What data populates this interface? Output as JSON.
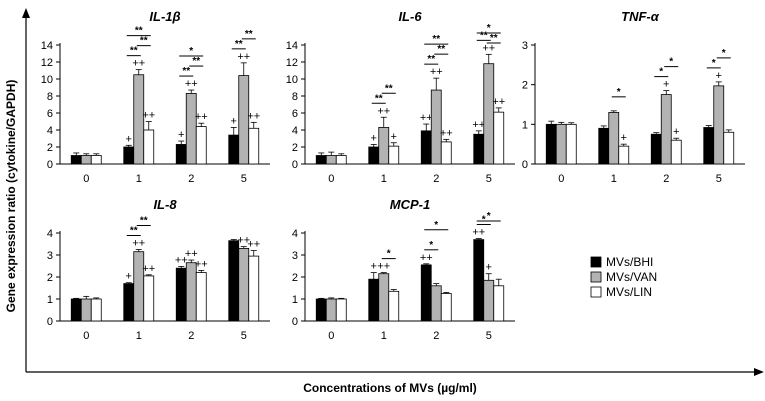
{
  "chart_data": [
    {
      "type": "bar",
      "title": "IL-1β",
      "categories": [
        "0",
        "1",
        "2",
        "5"
      ],
      "ylim": [
        0,
        14
      ],
      "yticks": [
        0,
        2,
        4,
        6,
        8,
        10,
        12,
        14
      ],
      "series": [
        {
          "name": "MVs/BHI",
          "values": [
            1.0,
            2.0,
            2.3,
            3.4
          ],
          "errors": [
            0.3,
            0.2,
            0.4,
            0.9
          ],
          "marks": [
            "",
            "+",
            "+",
            "+"
          ]
        },
        {
          "name": "MVs/VAN",
          "values": [
            1.0,
            10.5,
            8.3,
            10.4
          ],
          "errors": [
            0.2,
            0.6,
            0.4,
            1.5
          ],
          "marks": [
            "",
            "++",
            "++",
            "++"
          ]
        },
        {
          "name": "MVs/LIN",
          "values": [
            1.0,
            4.0,
            4.4,
            4.2
          ],
          "errors": [
            0.2,
            1.0,
            0.4,
            0.7
          ],
          "marks": [
            "",
            "++",
            "++",
            "++"
          ]
        }
      ],
      "brackets": [
        {
          "cat": 1,
          "from": 0,
          "to": 2,
          "label": "**"
        },
        {
          "cat": 1,
          "from": 0,
          "to": 1,
          "label": "**"
        },
        {
          "cat": 1,
          "from": 1,
          "to": 2,
          "label": "**"
        },
        {
          "cat": 2,
          "from": 0,
          "to": 2,
          "label": "*"
        },
        {
          "cat": 2,
          "from": 0,
          "to": 1,
          "label": "**"
        },
        {
          "cat": 2,
          "from": 1,
          "to": 2,
          "label": "**"
        },
        {
          "cat": 3,
          "from": 0,
          "to": 1,
          "label": "**"
        },
        {
          "cat": 3,
          "from": 1,
          "to": 2,
          "label": "**"
        }
      ]
    },
    {
      "type": "bar",
      "title": "IL-6",
      "categories": [
        "0",
        "1",
        "2",
        "5"
      ],
      "ylim": [
        0,
        14
      ],
      "yticks": [
        0,
        2,
        4,
        6,
        8,
        10,
        12,
        14
      ],
      "series": [
        {
          "name": "MVs/BHI",
          "values": [
            1.0,
            2.0,
            3.9,
            3.5
          ],
          "errors": [
            0.3,
            0.3,
            0.8,
            0.4
          ],
          "marks": [
            "",
            "+",
            "++",
            "++"
          ]
        },
        {
          "name": "MVs/VAN",
          "values": [
            1.0,
            4.3,
            8.7,
            11.8
          ],
          "errors": [
            0.4,
            1.2,
            1.4,
            1.1
          ],
          "marks": [
            "",
            "++",
            "++",
            "++"
          ]
        },
        {
          "name": "MVs/LIN",
          "values": [
            1.0,
            2.1,
            2.6,
            6.1
          ],
          "errors": [
            0.2,
            0.4,
            0.3,
            0.5
          ],
          "marks": [
            "",
            "+",
            "++",
            "++"
          ]
        }
      ],
      "brackets": [
        {
          "cat": 1,
          "from": 0,
          "to": 1,
          "label": "**"
        },
        {
          "cat": 1,
          "from": 1,
          "to": 2,
          "label": "**"
        },
        {
          "cat": 2,
          "from": 0,
          "to": 2,
          "label": "**"
        },
        {
          "cat": 2,
          "from": 0,
          "to": 1,
          "label": "**"
        },
        {
          "cat": 2,
          "from": 1,
          "to": 2,
          "label": "**"
        },
        {
          "cat": 3,
          "from": 0,
          "to": 2,
          "label": "*"
        },
        {
          "cat": 3,
          "from": 0,
          "to": 1,
          "label": "**"
        },
        {
          "cat": 3,
          "from": 1,
          "to": 2,
          "label": "**"
        }
      ]
    },
    {
      "type": "bar",
      "title": "TNF-α",
      "categories": [
        "0",
        "1",
        "2",
        "5"
      ],
      "ylim": [
        0,
        3
      ],
      "yticks": [
        0,
        1,
        2,
        3
      ],
      "series": [
        {
          "name": "MVs/BHI",
          "values": [
            1.0,
            0.9,
            0.75,
            0.92
          ],
          "errors": [
            0.08,
            0.06,
            0.04,
            0.05
          ],
          "marks": [
            "",
            "",
            "",
            ""
          ]
        },
        {
          "name": "MVs/VAN",
          "values": [
            1.0,
            1.3,
            1.75,
            1.97
          ],
          "errors": [
            0.05,
            0.04,
            0.1,
            0.1
          ],
          "marks": [
            "",
            "",
            "+",
            "+"
          ]
        },
        {
          "name": "MVs/LIN",
          "values": [
            1.0,
            0.45,
            0.6,
            0.8
          ],
          "errors": [
            0.04,
            0.05,
            0.05,
            0.06
          ],
          "marks": [
            "",
            "+",
            "+",
            ""
          ]
        }
      ],
      "brackets": [
        {
          "cat": 1,
          "from": 1,
          "to": 2,
          "label": "*"
        },
        {
          "cat": 2,
          "from": 0,
          "to": 1,
          "label": "*"
        },
        {
          "cat": 2,
          "from": 1,
          "to": 2,
          "label": "*"
        },
        {
          "cat": 3,
          "from": 0,
          "to": 1,
          "label": "*"
        },
        {
          "cat": 3,
          "from": 1,
          "to": 2,
          "label": "*"
        }
      ]
    },
    {
      "type": "bar",
      "title": "IL-8",
      "categories": [
        "0",
        "1",
        "2",
        "5"
      ],
      "ylim": [
        0,
        4
      ],
      "yticks": [
        0,
        1,
        2,
        3,
        4
      ],
      "series": [
        {
          "name": "MVs/BHI",
          "values": [
            1.0,
            1.7,
            2.4,
            3.65
          ],
          "errors": [
            0.03,
            0.04,
            0.08,
            0.05
          ],
          "marks": [
            "",
            "+",
            "++",
            ""
          ]
        },
        {
          "name": "MVs/VAN",
          "values": [
            1.0,
            3.15,
            2.65,
            3.3
          ],
          "errors": [
            0.12,
            0.1,
            0.12,
            0.08
          ],
          "marks": [
            "",
            "++",
            "++",
            "++"
          ]
        },
        {
          "name": "MVs/LIN",
          "values": [
            1.0,
            2.05,
            2.2,
            2.95
          ],
          "errors": [
            0.05,
            0.05,
            0.1,
            0.25
          ],
          "marks": [
            "",
            "++",
            "++",
            "++"
          ]
        }
      ],
      "brackets": [
        {
          "cat": 1,
          "from": 0,
          "to": 1,
          "label": "**"
        },
        {
          "cat": 1,
          "from": 1,
          "to": 2,
          "label": "**"
        }
      ]
    },
    {
      "type": "bar",
      "title": "MCP-1",
      "categories": [
        "0",
        "1",
        "2",
        "5"
      ],
      "ylim": [
        0,
        4
      ],
      "yticks": [
        0,
        1,
        2,
        3,
        4
      ],
      "series": [
        {
          "name": "MVs/BHI",
          "values": [
            1.0,
            1.9,
            2.55,
            3.7
          ],
          "errors": [
            0.03,
            0.3,
            0.05,
            0.05
          ],
          "marks": [
            "",
            "+",
            "++",
            "++"
          ]
        },
        {
          "name": "MVs/VAN",
          "values": [
            1.0,
            2.15,
            1.6,
            1.85
          ],
          "errors": [
            0.05,
            0.05,
            0.1,
            0.3
          ],
          "marks": [
            "",
            "++",
            "",
            "+"
          ]
        },
        {
          "name": "MVs/LIN",
          "values": [
            1.0,
            1.35,
            1.25,
            1.6
          ],
          "errors": [
            0.03,
            0.08,
            0.05,
            0.3
          ],
          "marks": [
            "",
            "",
            "",
            ""
          ]
        }
      ],
      "brackets": [
        {
          "cat": 1,
          "from": 1,
          "to": 2,
          "label": "*"
        },
        {
          "cat": 2,
          "from": 0,
          "to": 2,
          "label": "*"
        },
        {
          "cat": 2,
          "from": 0,
          "to": 1,
          "label": "*"
        },
        {
          "cat": 3,
          "from": 0,
          "to": 2,
          "label": "*"
        },
        {
          "cat": 3,
          "from": 0,
          "to": 1,
          "label": "*"
        }
      ]
    }
  ],
  "figure": {
    "ylabel": "Gene expression ratio (cytokine/GAPDH)",
    "xlabel": "Concentrations of MVs (µg/ml)"
  },
  "legend": {
    "placement": "right",
    "items": [
      {
        "label": "MVs/BHI",
        "color": "#000000"
      },
      {
        "label": "MVs/VAN",
        "color": "#b3b3b3"
      },
      {
        "label": "MVs/LIN",
        "color": "#ffffff"
      }
    ]
  },
  "colors": {
    "bhi": "#000000",
    "van": "#b3b3b3",
    "lin": "#ffffff",
    "stroke": "#000000"
  }
}
